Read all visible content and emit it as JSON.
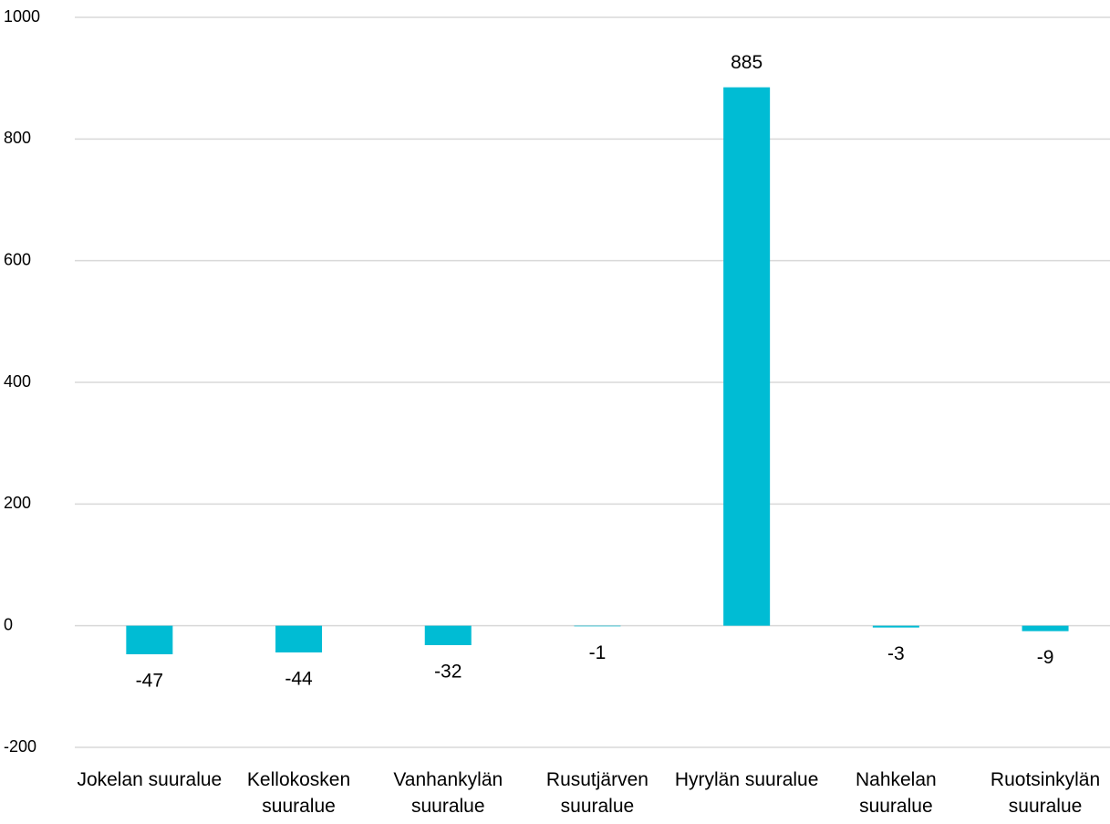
{
  "chart_data": {
    "type": "bar",
    "categories": [
      "Jokelan suuralue",
      "Kellokosken suuralue",
      "Vanhankylän suuralue",
      "Rusutjärven suuralue",
      "Hyrylän suuralue",
      "Nahkelan suuralue",
      "Ruotsinkylän suuralue"
    ],
    "values": [
      -47,
      -44,
      -32,
      -1,
      885,
      -3,
      -9
    ],
    "color": "#00bcd4",
    "ylim": [
      -200,
      1000
    ],
    "yticks": [
      -200,
      0,
      200,
      400,
      600,
      800,
      1000
    ],
    "grid": true
  }
}
